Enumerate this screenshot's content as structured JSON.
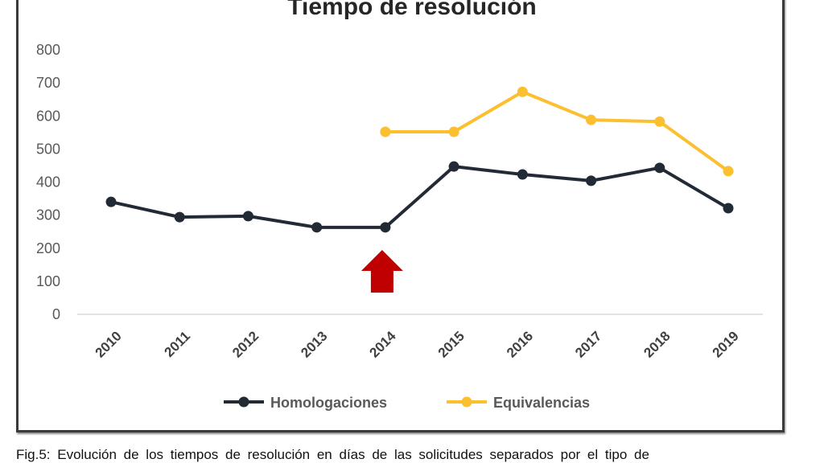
{
  "chart_data": {
    "type": "line",
    "title": "Tiempo de resolución",
    "categories": [
      "2010",
      "2011",
      "2012",
      "2013",
      "2014",
      "2015",
      "2016",
      "2017",
      "2018",
      "2019"
    ],
    "ylim": [
      0,
      800
    ],
    "yticks": [
      0,
      100,
      200,
      300,
      400,
      500,
      600,
      700,
      800
    ],
    "grid": false,
    "legend_position": "bottom",
    "series": [
      {
        "name": "Homologaciones",
        "color": "#222a35",
        "values": [
          340,
          294,
          297,
          263,
          263,
          447,
          423,
          404,
          443,
          321
        ]
      },
      {
        "name": "Equivalencias",
        "color": "#fbbf2f",
        "values": [
          null,
          null,
          null,
          null,
          552,
          552,
          673,
          588,
          583,
          433
        ]
      }
    ],
    "annotation": {
      "type": "arrow-up",
      "color": "#c00000",
      "at": "2014"
    }
  },
  "caption": "Fig.5: Evolución de los tiempos de resolución en días de las solicitudes separados por el tipo de"
}
